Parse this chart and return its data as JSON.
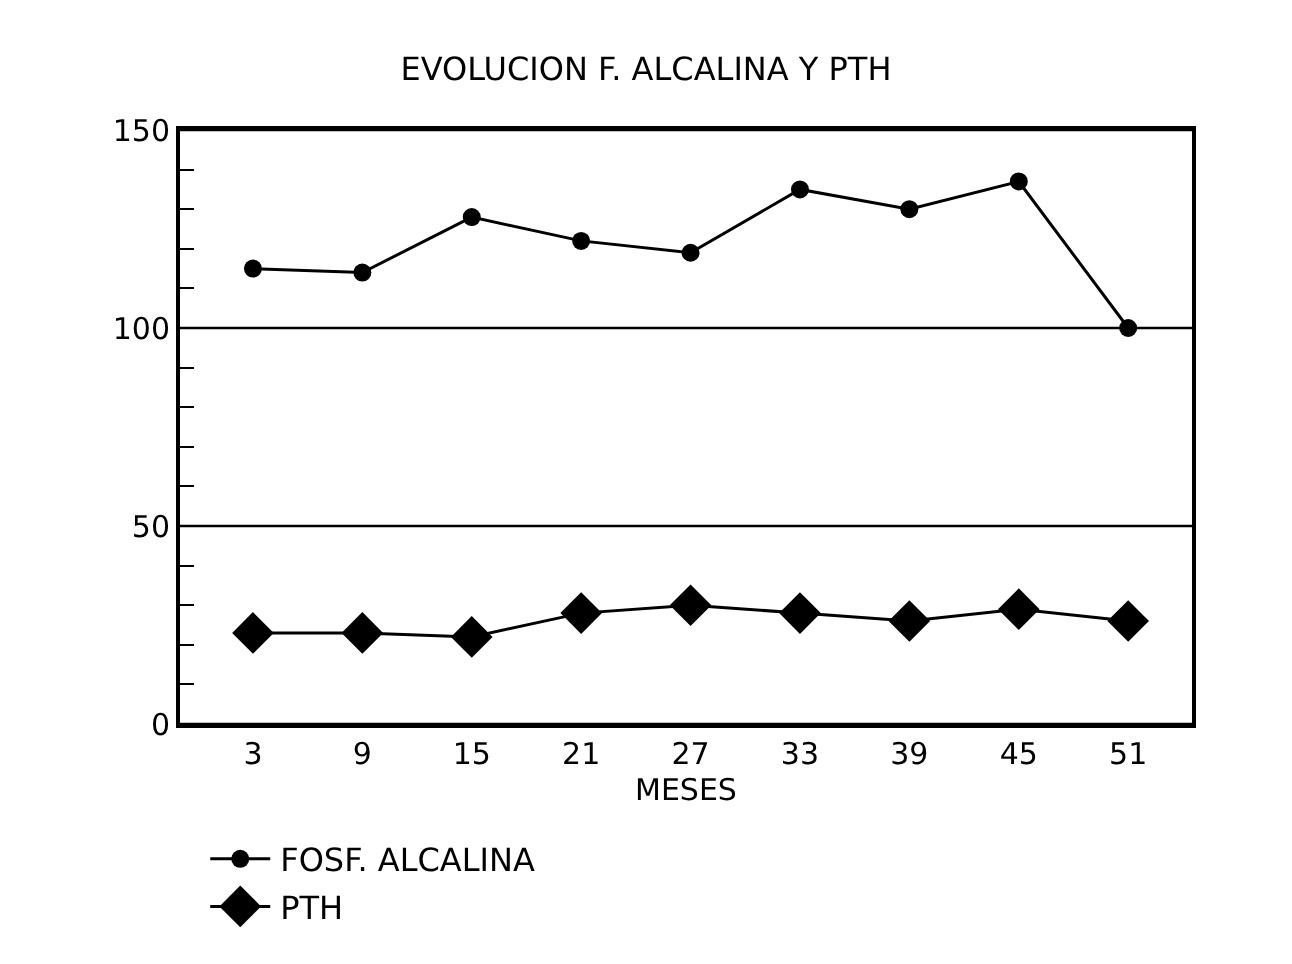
{
  "chart_data": {
    "type": "line",
    "title": "EVOLUCION F. ALCALINA Y PTH",
    "xlabel": "MESES",
    "x": [
      3,
      9,
      15,
      21,
      27,
      33,
      39,
      45,
      51
    ],
    "series": [
      {
        "name": "FOSF. ALCALINA",
        "color": "#000000",
        "marker": "circle",
        "values": [
          115,
          114,
          128,
          122,
          119,
          135,
          130,
          137,
          100
        ]
      },
      {
        "name": "PTH",
        "color": "#000000",
        "marker": "diamond",
        "values": [
          23,
          23,
          22,
          28,
          30,
          28,
          26,
          29,
          26
        ]
      }
    ],
    "xlim": [
      -1,
      54.5
    ],
    "xticks": [
      3,
      9,
      15,
      21,
      27,
      33,
      39,
      45,
      51
    ],
    "ylim": [
      0,
      150
    ],
    "yticks": [
      0,
      {
        "value": 10,
        "label": null
      },
      {
        "value": 20,
        "label": null
      },
      {
        "value": 30,
        "label": null
      },
      {
        "value": 40,
        "label": null
      },
      50,
      {
        "value": 60,
        "label": null
      },
      {
        "value": 70,
        "label": null
      },
      {
        "value": 80,
        "label": null
      },
      {
        "value": 90,
        "label": null
      },
      100,
      {
        "value": 110,
        "label": null
      },
      {
        "value": 120,
        "label": null
      },
      {
        "value": 130,
        "label": null
      },
      {
        "value": 140,
        "label": null
      },
      150
    ],
    "grid": "y",
    "legend": "bottom",
    "line_style": "solid"
  }
}
